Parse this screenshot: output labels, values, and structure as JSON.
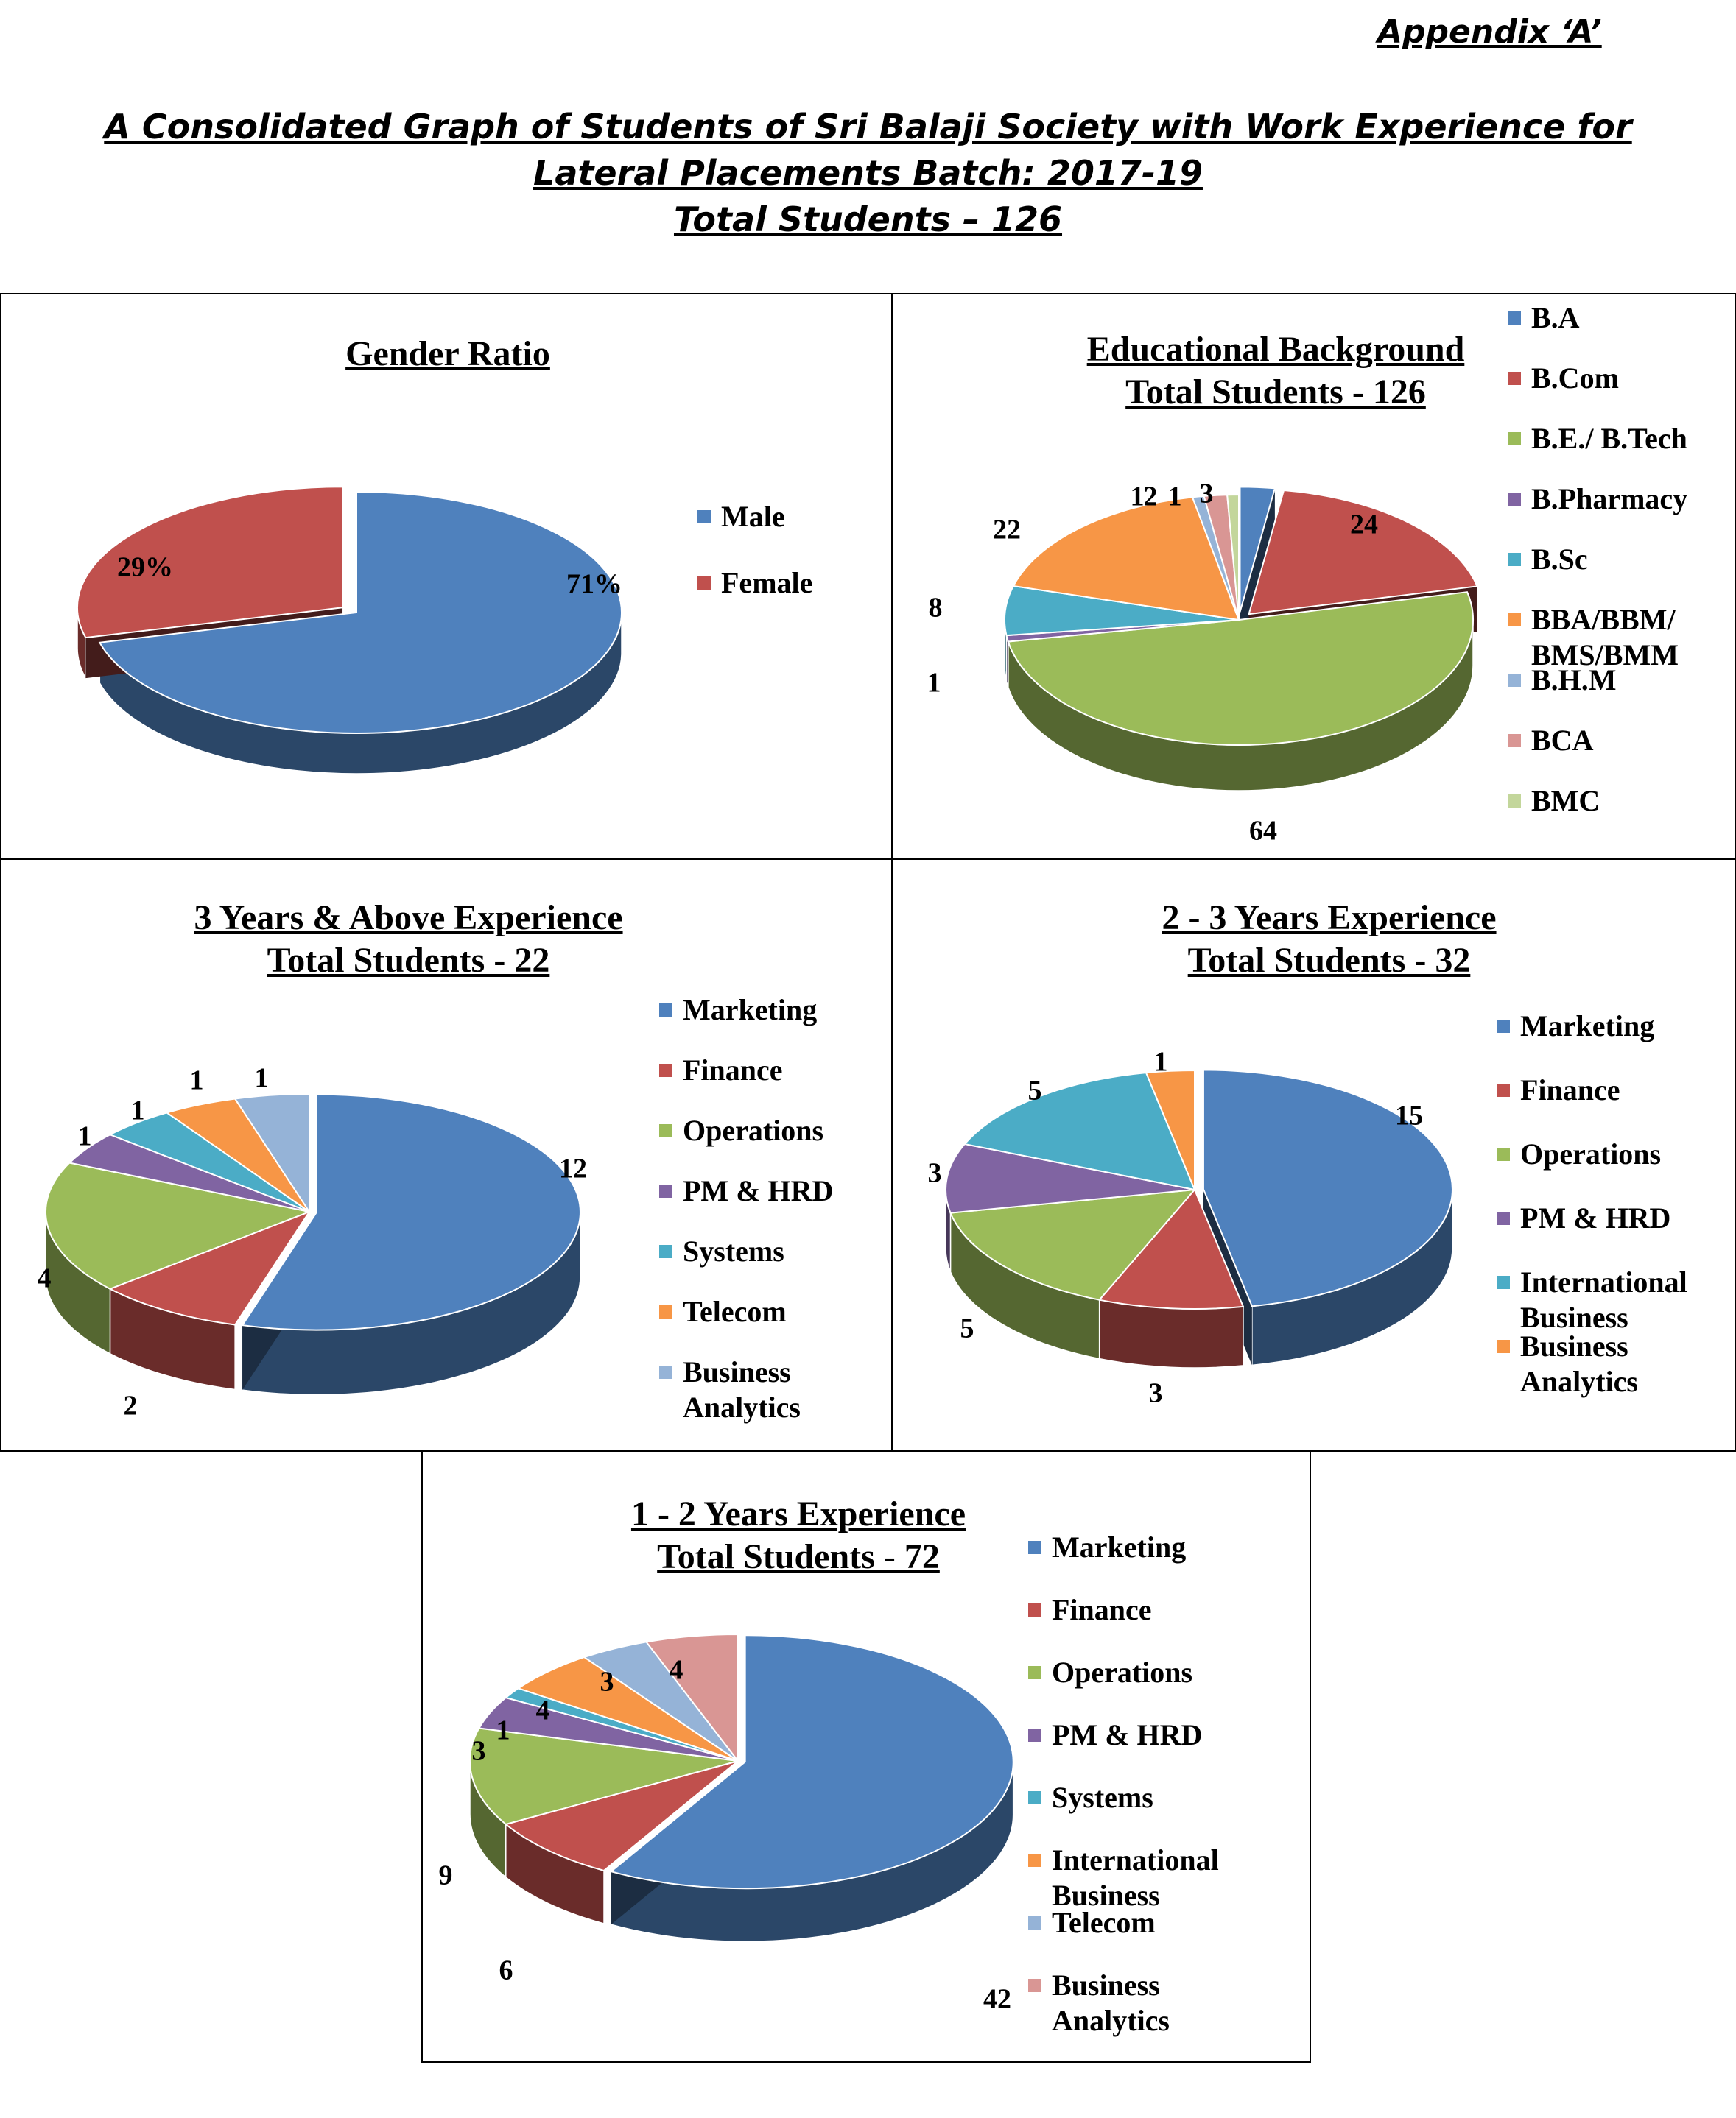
{
  "header": {
    "appendix": "Appendix ‘A’",
    "line1": "A Consolidated Graph of Students of Sri Balaji Society with Work Experience for",
    "line2": "Lateral Placements Batch: 2017-19",
    "line3": "Total Students – 126"
  },
  "colors": {
    "blue": "#4F81BD",
    "red": "#C0504D",
    "green": "#9BBB59",
    "purple": "#8064A2",
    "aqua": "#4BACC6",
    "orange": "#F79646",
    "lightblue": "#95B3D7",
    "pink": "#D99694",
    "lightgreen": "#C3D69B"
  },
  "chart_data": [
    {
      "id": "gender",
      "type": "pie",
      "title": "Gender Ratio",
      "subtitle": "",
      "categories": [
        "Male",
        "Female"
      ],
      "values": [
        71,
        29
      ],
      "data_labels": [
        "71%",
        "29%"
      ],
      "series_colors": [
        "#4F81BD",
        "#C0504D"
      ],
      "legend_position": "right",
      "exploded": [
        1
      ]
    },
    {
      "id": "education",
      "type": "pie",
      "title": "Educational Background",
      "subtitle": "Total Students - 126",
      "categories": [
        "B.A",
        "B.Com",
        "B.E./ B.Tech",
        "B.Pharmacy",
        "B.Sc",
        "BBA/BBM/ BMS/BMM",
        "B.H.M",
        "BCA",
        "BMC"
      ],
      "values": [
        3,
        24,
        64,
        1,
        8,
        22,
        1,
        2,
        1
      ],
      "data_labels": [
        "3",
        "24",
        "64",
        "1",
        "8",
        "22",
        "1",
        "2",
        "1"
      ],
      "series_colors": [
        "#4F81BD",
        "#C0504D",
        "#9BBB59",
        "#8064A2",
        "#4BACC6",
        "#F79646",
        "#95B3D7",
        "#D99694",
        "#C3D69B"
      ],
      "legend_position": "right",
      "exploded": [
        0,
        1
      ]
    },
    {
      "id": "exp3",
      "type": "pie",
      "title": "3 Years & Above Experience",
      "subtitle": "Total Students - 22",
      "categories": [
        "Marketing",
        "Finance",
        "Operations",
        "PM & HRD",
        "Systems",
        "Telecom",
        "Business Analytics"
      ],
      "values": [
        12,
        2,
        4,
        1,
        1,
        1,
        1
      ],
      "data_labels": [
        "12",
        "2",
        "4",
        "1",
        "1",
        "1",
        "1"
      ],
      "series_colors": [
        "#4F81BD",
        "#C0504D",
        "#9BBB59",
        "#8064A2",
        "#4BACC6",
        "#F79646",
        "#95B3D7"
      ],
      "legend_position": "right",
      "exploded": [
        0
      ]
    },
    {
      "id": "exp23",
      "type": "pie",
      "title": "2 - 3 Years Experience",
      "subtitle": "Total Students - 32",
      "categories": [
        "Marketing",
        "Finance",
        "Operations",
        "PM & HRD",
        "International Business",
        "Business Analytics"
      ],
      "values": [
        15,
        3,
        5,
        3,
        5,
        1
      ],
      "data_labels": [
        "15",
        "3",
        "5",
        "3",
        "5",
        "1"
      ],
      "series_colors": [
        "#4F81BD",
        "#C0504D",
        "#9BBB59",
        "#8064A2",
        "#4BACC6",
        "#F79646"
      ],
      "legend_position": "right",
      "exploded": [
        0
      ]
    },
    {
      "id": "exp12",
      "type": "pie",
      "title": "1 - 2 Years Experience",
      "subtitle": "Total Students - 72",
      "categories": [
        "Marketing",
        "Finance",
        "Operations",
        "PM & HRD",
        "Systems",
        "International Business",
        "Telecom",
        "Business Analytics"
      ],
      "values": [
        42,
        6,
        9,
        3,
        1,
        4,
        3,
        4
      ],
      "data_labels": [
        "42",
        "6",
        "9",
        "3",
        "1",
        "4",
        "3",
        "4"
      ],
      "series_colors": [
        "#4F81BD",
        "#C0504D",
        "#9BBB59",
        "#8064A2",
        "#4BACC6",
        "#F79646",
        "#95B3D7",
        "#D99694"
      ],
      "legend_position": "right",
      "exploded": [
        0
      ]
    }
  ]
}
